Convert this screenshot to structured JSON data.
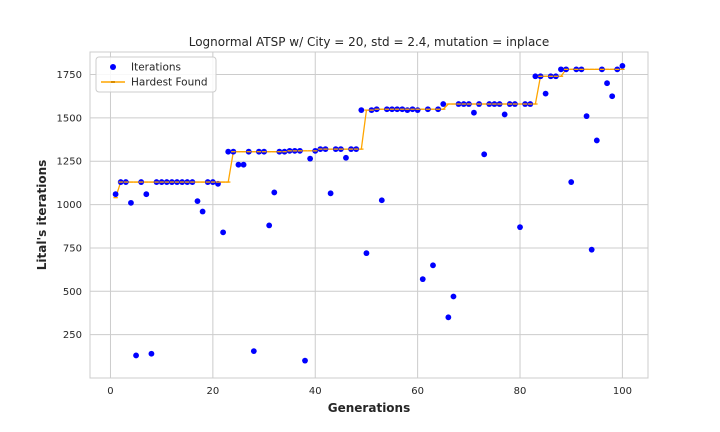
{
  "chart_data": {
    "type": "scatter",
    "title": "Lognormal ATSP w/ City = 20, std = 2.4, mutation = inplace",
    "xlabel": "Generations",
    "ylabel": "Lital's iterations",
    "xlim": [
      -4,
      105
    ],
    "ylim": [
      0,
      1880
    ],
    "xticks": [
      0,
      20,
      40,
      60,
      80,
      100
    ],
    "yticks": [
      250,
      500,
      750,
      1000,
      1250,
      1500,
      1750
    ],
    "grid": true,
    "legend_position": "top-left",
    "colors": {
      "iterations": "#0000ff",
      "hardest": "#ffa500",
      "grid": "#cccccc"
    },
    "series": [
      {
        "name": "Iterations",
        "kind": "scatter",
        "x": [
          1,
          2,
          3,
          4,
          5,
          6,
          7,
          8,
          9,
          10,
          11,
          12,
          13,
          14,
          15,
          16,
          17,
          18,
          19,
          20,
          21,
          22,
          23,
          24,
          25,
          26,
          27,
          28,
          29,
          30,
          31,
          32,
          33,
          34,
          35,
          36,
          37,
          38,
          39,
          40,
          41,
          42,
          43,
          44,
          45,
          46,
          47,
          48,
          49,
          50,
          51,
          52,
          53,
          54,
          55,
          56,
          57,
          58,
          59,
          60,
          61,
          62,
          63,
          64,
          65,
          66,
          67,
          68,
          69,
          70,
          71,
          72,
          73,
          74,
          75,
          76,
          77,
          78,
          79,
          80,
          81,
          82,
          83,
          84,
          85,
          86,
          87,
          88,
          89,
          90,
          91,
          92,
          93,
          94,
          95,
          96,
          97,
          98,
          99,
          100
        ],
        "y": [
          1060,
          1130,
          1130,
          1010,
          130,
          1130,
          1060,
          140,
          1130,
          1130,
          1130,
          1130,
          1130,
          1130,
          1130,
          1130,
          1020,
          960,
          1130,
          1130,
          1120,
          840,
          1305,
          1305,
          1230,
          1230,
          1305,
          155,
          1305,
          1305,
          880,
          1070,
          1305,
          1305,
          1310,
          1310,
          1310,
          100,
          1265,
          1310,
          1320,
          1320,
          1065,
          1320,
          1320,
          1270,
          1320,
          1320,
          1545,
          720,
          1545,
          1550,
          1025,
          1550,
          1550,
          1550,
          1550,
          1545,
          1550,
          1545,
          570,
          1550,
          650,
          1550,
          1580,
          350,
          470,
          1580,
          1580,
          1580,
          1530,
          1580,
          1290,
          1580,
          1580,
          1580,
          1520,
          1580,
          1580,
          870,
          1580,
          1580,
          1740,
          1740,
          1640,
          1740,
          1740,
          1780,
          1780,
          1130,
          1780,
          1780,
          1510,
          740,
          1370,
          1780,
          1700,
          1625,
          1780,
          1800
        ]
      },
      {
        "name": "Hardest Found",
        "kind": "step-line",
        "x": [
          1,
          2,
          3,
          4,
          5,
          6,
          7,
          8,
          9,
          10,
          11,
          12,
          13,
          14,
          15,
          16,
          17,
          18,
          19,
          20,
          21,
          22,
          23,
          24,
          25,
          26,
          27,
          28,
          29,
          30,
          31,
          32,
          33,
          34,
          35,
          36,
          37,
          38,
          39,
          40,
          41,
          42,
          43,
          44,
          45,
          46,
          47,
          48,
          49,
          50,
          51,
          52,
          53,
          54,
          55,
          56,
          57,
          58,
          59,
          60,
          61,
          62,
          63,
          64,
          65,
          66,
          67,
          68,
          69,
          70,
          71,
          72,
          73,
          74,
          75,
          76,
          77,
          78,
          79,
          80,
          81,
          82,
          83,
          84,
          85,
          86,
          87,
          88,
          89,
          90,
          91,
          92,
          93,
          94,
          95,
          96,
          97,
          98,
          99,
          100
        ],
        "y": [
          1040,
          1130,
          1130,
          1130,
          1130,
          1130,
          1130,
          1130,
          1130,
          1130,
          1130,
          1130,
          1130,
          1130,
          1130,
          1130,
          1130,
          1130,
          1130,
          1130,
          1130,
          1130,
          1130,
          1305,
          1305,
          1305,
          1305,
          1305,
          1305,
          1305,
          1305,
          1305,
          1305,
          1305,
          1310,
          1310,
          1310,
          1310,
          1310,
          1310,
          1320,
          1320,
          1320,
          1320,
          1320,
          1320,
          1320,
          1320,
          1320,
          1545,
          1545,
          1550,
          1550,
          1550,
          1550,
          1550,
          1550,
          1550,
          1550,
          1550,
          1550,
          1550,
          1550,
          1550,
          1550,
          1580,
          1580,
          1580,
          1580,
          1580,
          1580,
          1580,
          1580,
          1580,
          1580,
          1580,
          1580,
          1580,
          1580,
          1580,
          1580,
          1580,
          1580,
          1740,
          1740,
          1740,
          1740,
          1740,
          1780,
          1780,
          1780,
          1780,
          1780,
          1780,
          1780,
          1780,
          1780,
          1780,
          1780,
          1780
        ]
      }
    ]
  }
}
